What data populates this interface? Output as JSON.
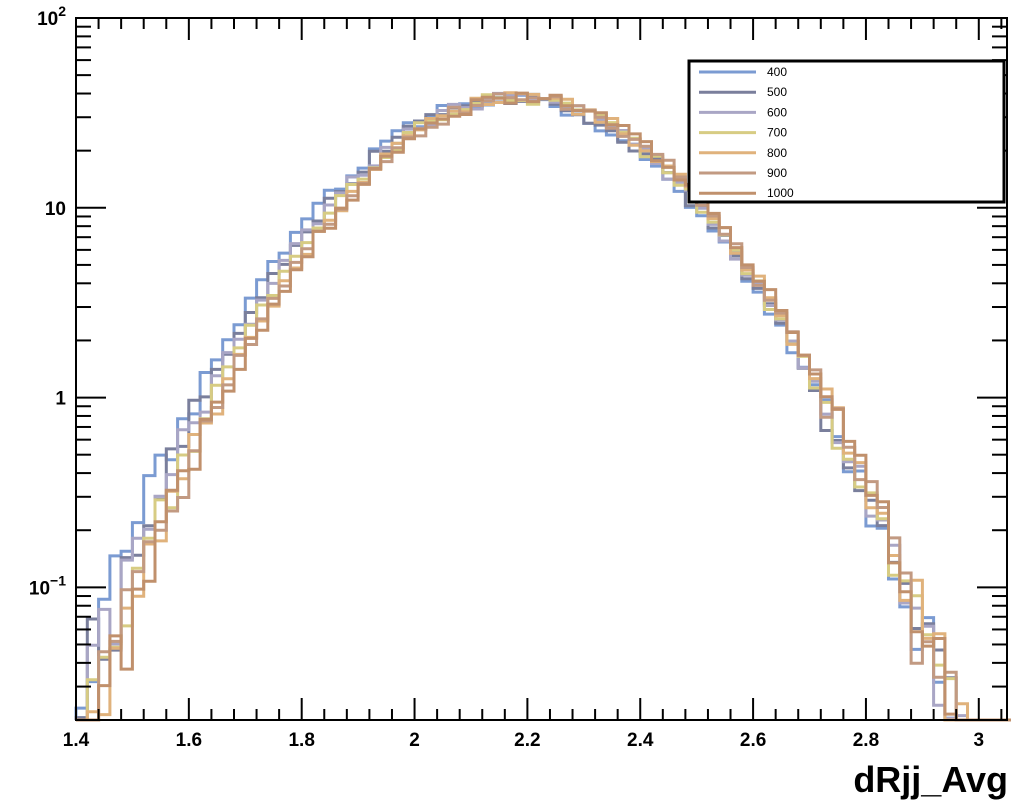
{
  "chart_data": {
    "type": "line",
    "xlabel": "dRjj_Avg",
    "ylabel": "",
    "xlim": [
      1.4,
      3.05
    ],
    "ylim": [
      0.02,
      100
    ],
    "yscale": "log",
    "grid": false,
    "legend_position": "top-right",
    "x_ticks": [
      {
        "value": 1.4,
        "label": "1.4"
      },
      {
        "value": 1.6,
        "label": "1.6"
      },
      {
        "value": 1.8,
        "label": "1.8"
      },
      {
        "value": 2.0,
        "label": "2"
      },
      {
        "value": 2.2,
        "label": "2.2"
      },
      {
        "value": 2.4,
        "label": "2.4"
      },
      {
        "value": 2.6,
        "label": "2.6"
      },
      {
        "value": 2.8,
        "label": "2.8"
      },
      {
        "value": 3.0,
        "label": "3"
      }
    ],
    "y_ticks": [
      {
        "value": 0.1,
        "base": "10",
        "exp": "−1"
      },
      {
        "value": 1,
        "base": "1",
        "exp": ""
      },
      {
        "value": 10,
        "base": "10",
        "exp": ""
      },
      {
        "value": 100,
        "base": "10",
        "exp": "2"
      }
    ],
    "bins": {
      "start": 1.4,
      "width": 0.02,
      "count": 83
    },
    "series": [
      {
        "name": "400",
        "color": "#7b9bd2",
        "mu": 2.165,
        "sigma": 0.205,
        "peak": 38.0,
        "seed": 1
      },
      {
        "name": "500",
        "color": "#7a7f9c",
        "mu": 2.172,
        "sigma": 0.203,
        "peak": 38.0,
        "seed": 2
      },
      {
        "name": "600",
        "color": "#a9a6c5",
        "mu": 2.178,
        "sigma": 0.202,
        "peak": 38.0,
        "seed": 3
      },
      {
        "name": "700",
        "color": "#d7cc83",
        "mu": 2.184,
        "sigma": 0.2,
        "peak": 38.0,
        "seed": 4
      },
      {
        "name": "800",
        "color": "#e0b27c",
        "mu": 2.19,
        "sigma": 0.199,
        "peak": 38.0,
        "seed": 5
      },
      {
        "name": "900",
        "color": "#c29a82",
        "mu": 2.193,
        "sigma": 0.199,
        "peak": 38.0,
        "seed": 6
      },
      {
        "name": "1000",
        "color": "#c0906c",
        "mu": 2.196,
        "sigma": 0.199,
        "peak": 38.0,
        "seed": 7
      }
    ]
  }
}
